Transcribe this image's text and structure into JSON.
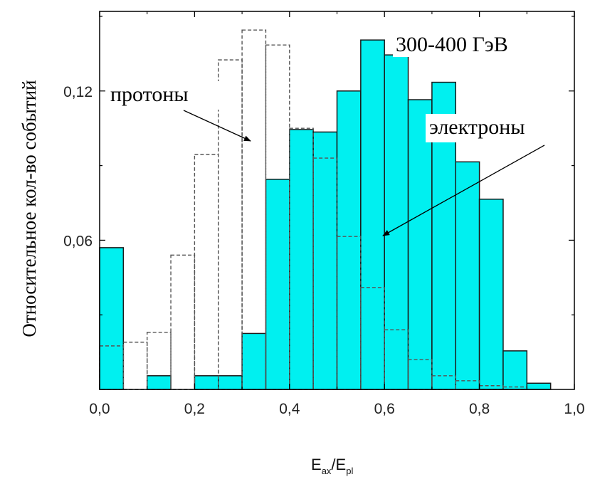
{
  "chart_data": {
    "type": "bar",
    "title": "300-400 ГэВ",
    "ylabel": "Относительное кол-во событий",
    "xlabel": {
      "base1": "E",
      "sub1": "ax",
      "sep": "/",
      "base2": "E",
      "sub2": "pl"
    },
    "xlim": [
      0.0,
      1.0
    ],
    "ylim": [
      0.0,
      0.152
    ],
    "x_ticks": [
      "0,0",
      "0,2",
      "0,4",
      "0,6",
      "0,8",
      "1,0"
    ],
    "y_ticks": [
      {
        "value": 0.06,
        "label": "0,06"
      },
      {
        "value": 0.12,
        "label": "0,12"
      }
    ],
    "bin_width": 0.05,
    "series": [
      {
        "name": "протоны",
        "style": "dashed-outline",
        "color": "#555555",
        "bins": [
          {
            "x": 0.0,
            "value": 0.0175
          },
          {
            "x": 0.05,
            "value": 0.019
          },
          {
            "x": 0.1,
            "value": 0.023
          },
          {
            "x": 0.15,
            "value": 0.054
          },
          {
            "x": 0.2,
            "value": 0.0945
          },
          {
            "x": 0.25,
            "value": 0.1325
          },
          {
            "x": 0.3,
            "value": 0.1445
          },
          {
            "x": 0.35,
            "value": 0.1385
          },
          {
            "x": 0.4,
            "value": 0.105
          },
          {
            "x": 0.45,
            "value": 0.093
          },
          {
            "x": 0.5,
            "value": 0.0615
          },
          {
            "x": 0.55,
            "value": 0.041
          },
          {
            "x": 0.6,
            "value": 0.024
          },
          {
            "x": 0.65,
            "value": 0.012
          },
          {
            "x": 0.7,
            "value": 0.0055
          },
          {
            "x": 0.75,
            "value": 0.0035
          },
          {
            "x": 0.8,
            "value": 0.0015
          },
          {
            "x": 0.85,
            "value": 0.001
          },
          {
            "x": 0.9,
            "value": 0.0
          }
        ]
      },
      {
        "name": "электроны",
        "style": "cyan-filled",
        "color": "#00f0f0",
        "bins": [
          {
            "x": 0.0,
            "value": 0.057
          },
          {
            "x": 0.05,
            "value": 0.0
          },
          {
            "x": 0.1,
            "value": 0.0055
          },
          {
            "x": 0.15,
            "value": 0.0
          },
          {
            "x": 0.2,
            "value": 0.0055
          },
          {
            "x": 0.25,
            "value": 0.0055
          },
          {
            "x": 0.3,
            "value": 0.0225
          },
          {
            "x": 0.35,
            "value": 0.0845
          },
          {
            "x": 0.4,
            "value": 0.1045
          },
          {
            "x": 0.45,
            "value": 0.1035
          },
          {
            "x": 0.5,
            "value": 0.12
          },
          {
            "x": 0.55,
            "value": 0.1405
          },
          {
            "x": 0.6,
            "value": 0.1345
          },
          {
            "x": 0.65,
            "value": 0.1165
          },
          {
            "x": 0.7,
            "value": 0.1235
          },
          {
            "x": 0.75,
            "value": 0.0915
          },
          {
            "x": 0.8,
            "value": 0.0765
          },
          {
            "x": 0.85,
            "value": 0.0155
          },
          {
            "x": 0.9,
            "value": 0.0025
          }
        ]
      }
    ],
    "annotations": [
      {
        "text": "протоны",
        "arrow_to": [
          0.345,
          0.102
        ]
      },
      {
        "text": "электроны",
        "arrow_to": [
          0.59,
          0.0625
        ]
      }
    ]
  }
}
